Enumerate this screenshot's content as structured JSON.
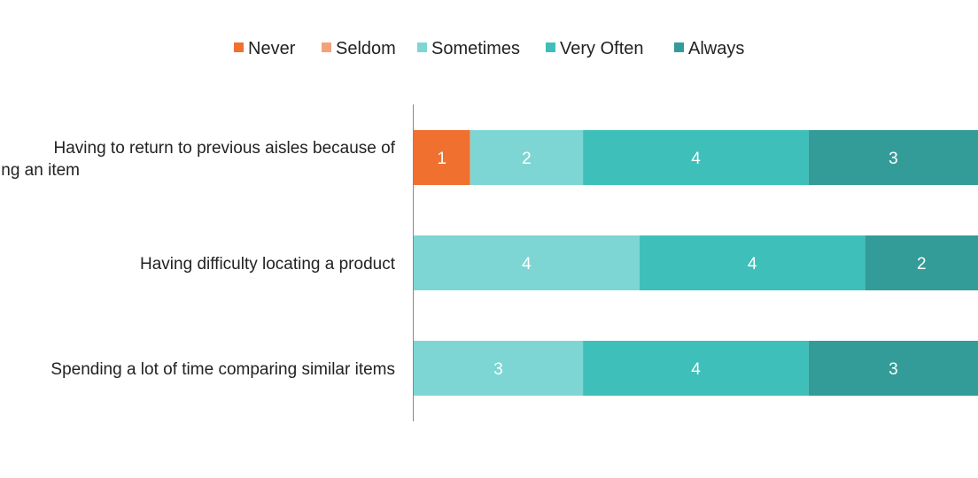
{
  "chart_data": {
    "type": "bar",
    "orientation": "horizontal",
    "stacked": true,
    "title": "",
    "xlabel": "",
    "ylabel": "",
    "xlim": [
      0,
      10
    ],
    "grid": false,
    "legend_position": "top",
    "show_data_labels": true,
    "categories": [
      "Having to return to previous aisles because of missing an item",
      "Having difficulty locating a product",
      "Spending a lot of time comparing similar items"
    ],
    "series": [
      {
        "name": "Never",
        "color": "#F07030",
        "values": [
          1,
          0,
          0
        ]
      },
      {
        "name": "Seldom",
        "color": "#F4A27A",
        "values": [
          0,
          0,
          0
        ]
      },
      {
        "name": "Sometimes",
        "color": "#7ED6D4",
        "values": [
          2,
          4,
          3
        ]
      },
      {
        "name": "Very Often",
        "color": "#3FBFBA",
        "values": [
          4,
          4,
          4
        ]
      },
      {
        "name": "Always",
        "color": "#339C99",
        "values": [
          3,
          2,
          3
        ]
      }
    ]
  }
}
